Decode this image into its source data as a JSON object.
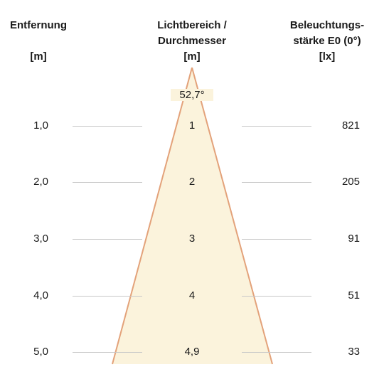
{
  "headers": {
    "distance": {
      "line1": "Entfernung",
      "unit": "[m]"
    },
    "beam": {
      "line1": "Lichtbereich /",
      "line2": "Durchmesser",
      "unit": "[m]"
    },
    "lux": {
      "line1": "Beleuchtungs-",
      "line2": "stärke E0 (0°)",
      "unit": "[lx]"
    }
  },
  "angle_label": "52,7°",
  "rows": [
    {
      "distance": "1,0",
      "diameter": "1",
      "lux": "821"
    },
    {
      "distance": "2,0",
      "diameter": "2",
      "lux": "205"
    },
    {
      "distance": "3,0",
      "diameter": "3",
      "lux": "91"
    },
    {
      "distance": "4,0",
      "diameter": "4",
      "lux": "51"
    },
    {
      "distance": "5,0",
      "diameter": "4,9",
      "lux": "33"
    }
  ],
  "colors": {
    "cone_fill": "#fbf3dc",
    "cone_edge": "#e3a27a",
    "rule": "#c8c8c8"
  }
}
